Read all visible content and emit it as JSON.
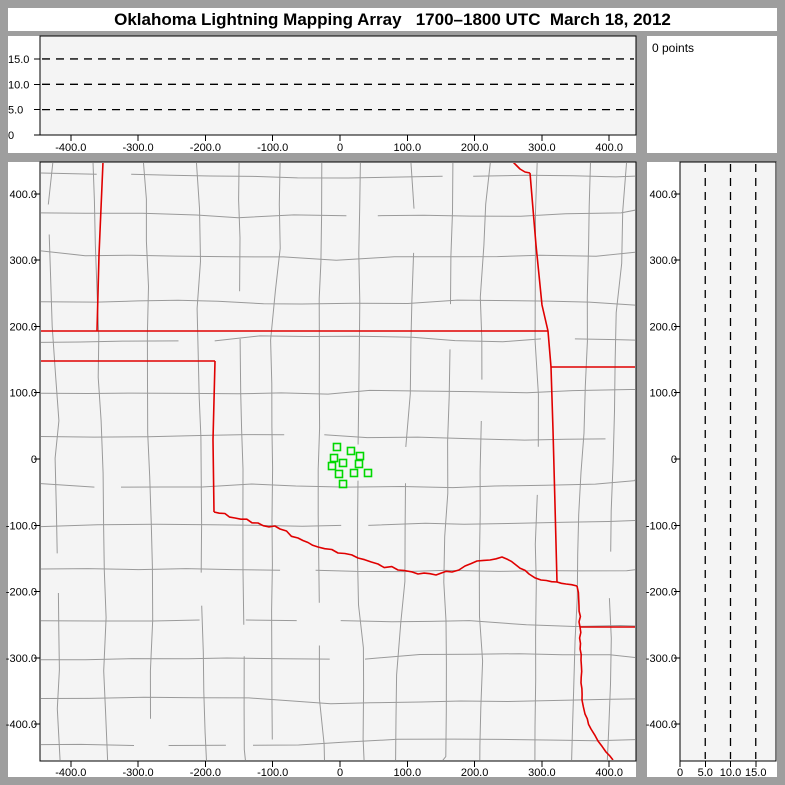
{
  "title": "Oklahoma Lightning Mapping Array   1700–1800 UTC  March 18, 2012",
  "points_panel": {
    "label": "0 points"
  },
  "colors": {
    "frame_gray": "#9e9e9e",
    "panel_white": "#ffffff",
    "plot_bg": "#f4f4f4",
    "axis_black": "#000000",
    "county_line": "#9a9a9a",
    "state_border_red": "#e00000",
    "station_green": "#00d800",
    "grid_dash_black": "#000000"
  },
  "axes": {
    "ew_ticks": {
      "values": [
        -400,
        -300,
        -200,
        -100,
        0,
        100,
        200,
        300,
        400
      ],
      "labels": [
        "-400.0",
        "-300.0",
        "-200.0",
        "-100.0",
        "0",
        "100.0",
        "200.0",
        "300.0",
        "400.0"
      ]
    },
    "ns_ticks": {
      "values": [
        400,
        300,
        200,
        100,
        0,
        -100,
        -200,
        -300,
        -400
      ],
      "labels": [
        "400.0",
        "300.0",
        "200.0",
        "100.0",
        "0",
        "-100.0",
        "-200.0",
        "-300.0",
        "-400.0"
      ]
    },
    "alt_ticks": {
      "values": [
        0,
        5,
        10,
        15
      ],
      "labels": [
        "0",
        "5.0",
        "10.0",
        "15.0"
      ]
    },
    "alt_gridlines": [
      5,
      10,
      15
    ]
  },
  "chart_data": [
    {
      "type": "scatter",
      "panel": "altitude-vs-east-west",
      "x_range_km": [
        -445.8,
        439.8
      ],
      "y_range_km_alt": [
        0,
        19.5
      ],
      "x_ticks": [
        -400,
        -300,
        -200,
        -100,
        0,
        100,
        200,
        300,
        400
      ],
      "y_ticks": [
        0,
        5,
        10,
        15
      ],
      "gridlines": "horizontal dashed at 5, 10, 15 km",
      "points": [],
      "point_count": 0
    },
    {
      "type": "scatter",
      "panel": "plan-view-map",
      "x_range_km": [
        -445.8,
        439.8
      ],
      "y_range_km": [
        -455.5,
        447.9
      ],
      "x_ticks": [
        -400,
        -300,
        -200,
        -100,
        0,
        100,
        200,
        300,
        400
      ],
      "y_ticks": [
        400,
        300,
        200,
        100,
        0,
        -100,
        -200,
        -300,
        -400
      ],
      "points": [],
      "point_count": 0,
      "stations_km": [
        [
          -4.5,
          18.1
        ],
        [
          16.3,
          12.1
        ],
        [
          29.7,
          4.5
        ],
        [
          -8.9,
          1.5
        ],
        [
          4.5,
          -6.0
        ],
        [
          28.2,
          -7.5
        ],
        [
          -11.9,
          -10.6
        ],
        [
          -1.5,
          -22.6
        ],
        [
          20.8,
          -21.1
        ],
        [
          41.6,
          -21.1
        ],
        [
          4.5,
          -37.7
        ]
      ],
      "state_borders_km": {
        "ks_mo_missouri_river": {
          "wiggle": 0.8,
          "pts": [
            [
              257.1,
              447.9
            ],
            [
              261.5,
              443.4
            ],
            [
              267.5,
              437.4
            ],
            [
              274.9,
              432.9
            ],
            [
              282.3,
              431.4
            ]
          ]
        },
        "ok_mo_ar_east_border": {
          "wiggle": 0,
          "pts": [
            [
              282.3,
              431.4
            ],
            [
              291.2,
              322.8
            ],
            [
              300.1,
              232.3
            ],
            [
              309.1,
              193.1
            ],
            [
              313.5,
              138.8
            ],
            [
              316.5,
              43.7
            ],
            [
              319.5,
              -69.4
            ],
            [
              322.4,
              -185.5
            ]
          ]
        },
        "ks_south_37N": {
          "wiggle": 0,
          "pts": [
            [
              -445.8,
              193.1
            ],
            [
              309.1,
              193.1
            ]
          ]
        },
        "co_ks_102W": {
          "wiggle": 0,
          "pts": [
            [
              -352.2,
              447.9
            ],
            [
              -358.1,
              307.7
            ],
            [
              -361.1,
              193.1
            ]
          ]
        },
        "tx_panhandle_36_5N": {
          "wiggle": 0,
          "pts": [
            [
              -445.8,
              147.8
            ],
            [
              -185.7,
              147.8
            ]
          ]
        },
        "tx_ok_100W": {
          "wiggle": 0,
          "pts": [
            [
              -185.7,
              147.8
            ],
            [
              -188.7,
              28.7
            ],
            [
              -187.2,
              -79.9
            ]
          ]
        },
        "red_river": {
          "wiggle": 1.7,
          "pts": [
            [
              -187.2,
              -79.9
            ],
            [
              -156.0,
              -89.0
            ],
            [
              -121.8,
              -96.5
            ],
            [
              -89.2,
              -105.6
            ],
            [
              -62.4,
              -119.2
            ],
            [
              -32.7,
              -132.7
            ],
            [
              -3.0,
              -141.8
            ],
            [
              26.7,
              -149.3
            ],
            [
              56.5,
              -158.4
            ],
            [
              86.2,
              -167.4
            ],
            [
              115.9,
              -173.5
            ],
            [
              142.6,
              -175.0
            ],
            [
              166.4,
              -170.4
            ],
            [
              185.7,
              -161.4
            ],
            [
              203.6,
              -153.8
            ],
            [
              222.9,
              -152.3
            ],
            [
              240.7,
              -147.8
            ],
            [
              261.5,
              -159.9
            ],
            [
              280.8,
              -173.5
            ],
            [
              298.7,
              -182.5
            ],
            [
              322.4,
              -185.5
            ],
            [
              335.8,
              -188.5
            ],
            [
              352.2,
              -191.6
            ]
          ]
        },
        "tx_ar_la_east": {
          "wiggle": 0.9,
          "pts": [
            [
              352.2,
              -191.6
            ],
            [
              355.1,
              -221.7
            ],
            [
              356.6,
              -253.4
            ],
            [
              358.1,
              -303.2
            ],
            [
              359.6,
              -363.5
            ],
            [
              364.0,
              -384.6
            ],
            [
              372.9,
              -407.2
            ],
            [
              383.4,
              -425.3
            ],
            [
              395.2,
              -441.9
            ],
            [
              405.6,
              -454.0
            ]
          ]
        },
        "mo_ar_36_5N": {
          "wiggle": 0,
          "pts": [
            [
              313.5,
              138.8
            ],
            [
              441.3,
              138.8
            ]
          ]
        },
        "ar_la_33N": {
          "wiggle": 0,
          "pts": [
            [
              356.6,
              -253.4
            ],
            [
              441.3,
              -253.4
            ]
          ]
        }
      },
      "county_grid_style": {
        "seed": 13,
        "wobble": 2.4,
        "jog_prob": 0.25,
        "jog_mag": 10,
        "gap_prob": 0.07,
        "tilt": 0.000105
      }
    },
    {
      "type": "scatter",
      "panel": "altitude-vs-north-south",
      "x_range_km_alt": [
        0,
        19.0
      ],
      "y_range_km": [
        -455.5,
        447.9
      ],
      "x_ticks": [
        0,
        5,
        10,
        15
      ],
      "y_ticks": [
        400,
        300,
        200,
        100,
        0,
        -100,
        -200,
        -300,
        -400
      ],
      "gridlines": "vertical dashed at 5, 10, 15 km",
      "points": [],
      "point_count": 0
    }
  ]
}
